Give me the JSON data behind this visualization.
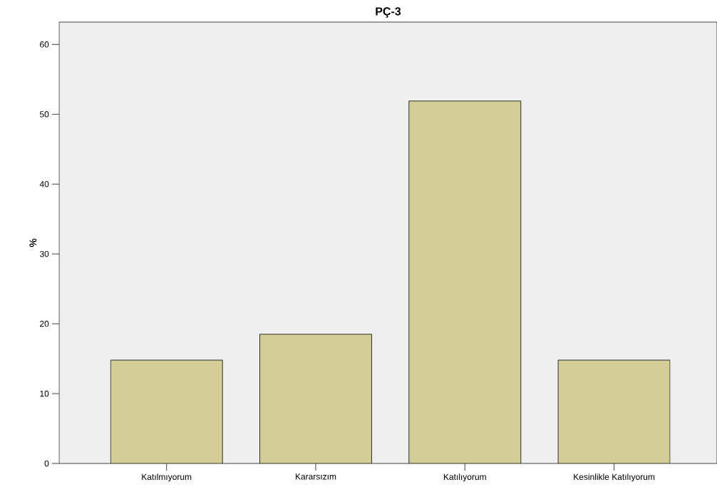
{
  "chart_data": {
    "type": "bar",
    "title": "PÇ-3",
    "ylabel": "%",
    "categories": [
      "Katılmıyorum",
      "Kararsızım",
      "Katılıyorum",
      "Kesinlikle Katılıyorum"
    ],
    "values": [
      14.8,
      18.5,
      51.9,
      14.8
    ],
    "color": "#d3cd98",
    "ylim": [
      0,
      63.2
    ],
    "yticks": [
      0,
      10,
      20,
      30,
      40,
      50,
      60
    ]
  }
}
